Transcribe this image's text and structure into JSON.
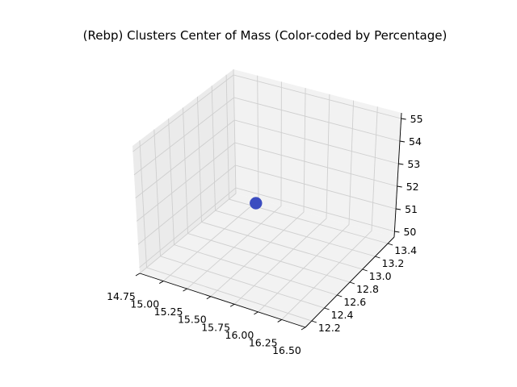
{
  "chart_data": {
    "type": "scatter",
    "title": "(Rebp) Clusters Center of Mass (Color-coded by Percentage)",
    "projection": "3d",
    "grid": true,
    "xlim": [
      14.75,
      16.5
    ],
    "ylim": [
      12.1,
      13.5
    ],
    "zlim": [
      49.75,
      55.25
    ],
    "x_ticks": [
      "14.75",
      "15.00",
      "15.25",
      "15.50",
      "15.75",
      "16.00",
      "16.25",
      "16.50"
    ],
    "y_ticks": [
      "12.2",
      "12.4",
      "12.6",
      "12.8",
      "13.0",
      "13.2",
      "13.4"
    ],
    "z_ticks": [
      "50",
      "51",
      "52",
      "53",
      "54",
      "55"
    ],
    "xlabel": "",
    "ylabel": "",
    "zlabel": "",
    "points": [
      {
        "x": 15.5,
        "y": 12.8,
        "z": 52.0,
        "color": "#3b4cc0"
      }
    ]
  }
}
